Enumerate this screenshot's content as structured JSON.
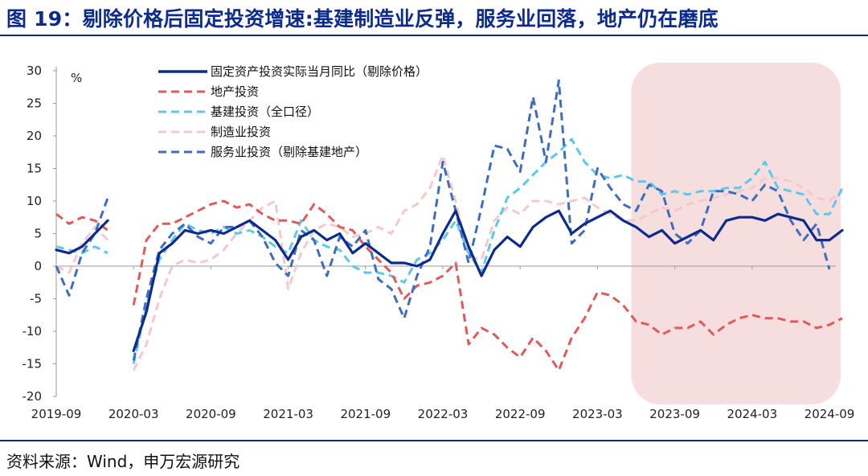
{
  "header": {
    "title": "图 19：剔除价格后固定投资增速:基建制造业反弹，服务业回落，地产仍在磨底"
  },
  "footer": {
    "source": "资料来源：Wind，申万宏源研究"
  },
  "colors": {
    "title": "#0d2b8c",
    "highlight": "#f6dede"
  },
  "chart_data": {
    "type": "line",
    "title": "图 19：剔除价格后固定投资增速:基建制造业反弹，服务业回落，地产仍在磨底",
    "ylabel": "%",
    "ylim": [
      -20,
      30
    ],
    "yticks": [
      30,
      25,
      20,
      15,
      10,
      5,
      0,
      -5,
      -10,
      -15,
      -20
    ],
    "x_start": "2019-09",
    "x_end": "2024-09",
    "xticks": [
      "2019-09",
      "2020-03",
      "2020-09",
      "2021-03",
      "2021-09",
      "2022-03",
      "2022-09",
      "2023-03",
      "2023-09",
      "2024-03",
      "2024-09"
    ],
    "highlight_range": [
      "2023-06",
      "2024-09"
    ],
    "legend_position": "top",
    "series": [
      {
        "name": "固定资产投资实际当月同比（剔除价格）",
        "color": "#0d2b8c",
        "dash": "solid",
        "values": [
          2.5,
          2.0,
          3.0,
          5.0,
          7.0,
          null,
          -13.0,
          -7.0,
          2.0,
          3.5,
          5.5,
          5.0,
          5.5,
          5.0,
          6.0,
          7.0,
          5.5,
          4.0,
          1.0,
          4.5,
          5.5,
          4.0,
          5.0,
          2.0,
          3.5,
          2.0,
          0.5,
          0.5,
          0.0,
          1.0,
          5.0,
          8.5,
          3.0,
          -1.5,
          2.5,
          4.5,
          3.0,
          6.0,
          7.5,
          8.5,
          5.0,
          6.5,
          7.5,
          8.5,
          7.0,
          6.0,
          4.5,
          5.5,
          3.5,
          4.5,
          5.5,
          4.0,
          7.0,
          7.5,
          7.5,
          7.0,
          8.0,
          7.5,
          7.0,
          4.0,
          4.0,
          5.5
        ]
      },
      {
        "name": "地产投资",
        "color": "#e05a5a",
        "dash": "dashed",
        "values": [
          8.0,
          6.5,
          7.5,
          7.0,
          5.5,
          null,
          -6.0,
          4.0,
          6.5,
          6.5,
          7.5,
          8.5,
          9.5,
          10.0,
          9.0,
          9.5,
          8.0,
          7.0,
          7.0,
          6.5,
          9.5,
          8.0,
          6.0,
          5.5,
          3.0,
          1.0,
          -1.0,
          -5.0,
          -3.0,
          -2.5,
          -1.5,
          0.5,
          -12.0,
          -9.5,
          -10.5,
          -12.5,
          -14.0,
          -11.0,
          -13.0,
          -16.0,
          -11.0,
          -8.0,
          -4.0,
          -4.5,
          -6.0,
          -8.5,
          -9.0,
          -10.5,
          -9.5,
          -9.5,
          -8.5,
          -10.5,
          -9.0,
          -8.0,
          -7.5,
          -8.0,
          -8.0,
          -8.5,
          -8.5,
          -9.5,
          -9.0,
          -8.0
        ]
      },
      {
        "name": "基建投资（全口径）",
        "color": "#5cc8ee",
        "dash": "dashed",
        "values": [
          3.0,
          2.5,
          2.0,
          3.0,
          2.0,
          null,
          -15.0,
          -6.0,
          1.0,
          4.0,
          6.5,
          5.5,
          5.0,
          6.0,
          5.0,
          5.5,
          4.5,
          3.0,
          2.0,
          7.0,
          4.0,
          3.0,
          2.5,
          0.0,
          -1.0,
          -1.0,
          -1.5,
          -2.5,
          1.0,
          2.0,
          4.0,
          7.0,
          2.0,
          -1.0,
          5.5,
          10.5,
          12.0,
          14.0,
          16.0,
          17.5,
          19.5,
          16.0,
          14.0,
          13.5,
          14.0,
          13.0,
          13.0,
          11.0,
          11.5,
          11.0,
          11.5,
          11.5,
          12.0,
          12.0,
          13.5,
          16.0,
          12.0,
          11.5,
          11.0,
          8.0,
          8.0,
          12.0
        ]
      },
      {
        "name": "制造业投资",
        "color": "#f5c8cd",
        "dash": "dashed",
        "values": [
          0.0,
          -1.0,
          3.5,
          6.0,
          4.0,
          null,
          -16.0,
          -12.0,
          -5.0,
          0.0,
          1.0,
          0.5,
          1.0,
          2.5,
          5.0,
          7.0,
          9.0,
          10.0,
          -3.5,
          2.0,
          5.5,
          6.5,
          6.0,
          4.5,
          5.0,
          6.0,
          5.0,
          8.5,
          9.5,
          12.0,
          17.0,
          10.0,
          1.5,
          1.0,
          7.0,
          9.0,
          8.0,
          10.0,
          10.0,
          9.5,
          10.0,
          10.5,
          9.0,
          8.0,
          7.0,
          7.0,
          8.0,
          9.0,
          8.5,
          9.5,
          10.0,
          10.5,
          11.0,
          11.5,
          12.0,
          13.5,
          13.5,
          13.0,
          12.0,
          10.5,
          10.0,
          11.5
        ]
      },
      {
        "name": "服务业投资（剔除基建地产）",
        "color": "#3f6dbe",
        "dash": "dashed",
        "values": [
          0.0,
          -4.5,
          2.0,
          5.0,
          10.5,
          null,
          -14.5,
          -5.0,
          2.5,
          5.0,
          6.5,
          4.5,
          3.5,
          6.0,
          6.0,
          7.0,
          4.5,
          0.5,
          -1.5,
          5.5,
          4.0,
          -1.5,
          4.5,
          3.0,
          5.5,
          -2.0,
          -3.5,
          -8.0,
          -1.5,
          3.0,
          16.0,
          8.5,
          0.5,
          9.0,
          18.5,
          18.0,
          14.5,
          26.0,
          16.0,
          28.5,
          3.5,
          5.5,
          15.0,
          12.0,
          9.5,
          8.5,
          12.5,
          11.5,
          5.0,
          3.5,
          5.5,
          11.5,
          11.5,
          11.0,
          10.0,
          12.5,
          11.5,
          7.0,
          4.0,
          6.5,
          -0.5,
          null
        ]
      }
    ]
  }
}
